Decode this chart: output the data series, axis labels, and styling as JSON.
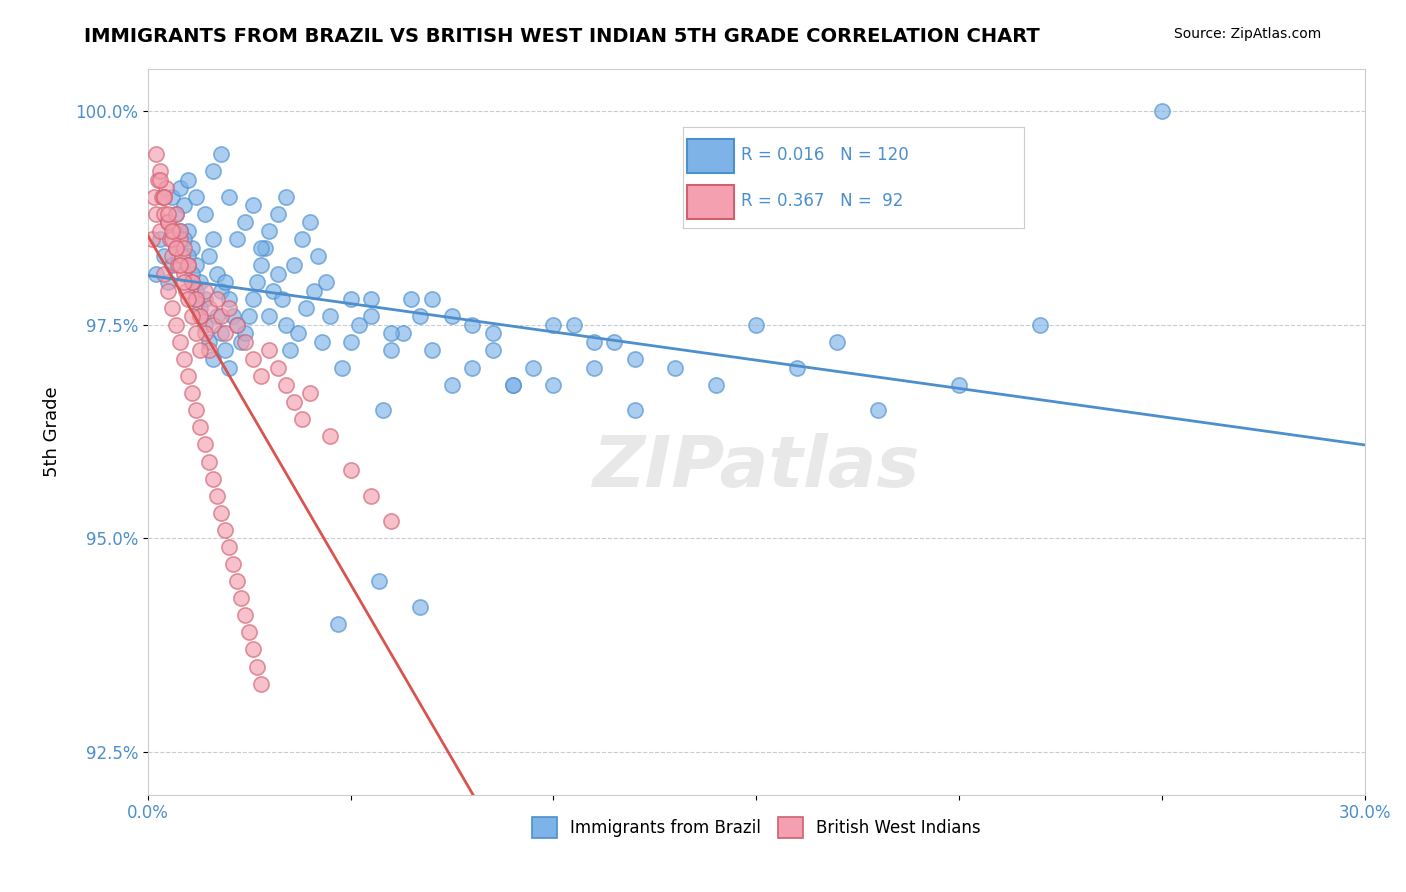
{
  "title": "IMMIGRANTS FROM BRAZIL VS BRITISH WEST INDIAN 5TH GRADE CORRELATION CHART",
  "source": "Source: ZipAtlas.com",
  "xlabel_blue": "Immigrants from Brazil",
  "xlabel_pink": "British West Indians",
  "ylabel": "5th Grade",
  "xlim": [
    0.0,
    30.0
  ],
  "ylim": [
    92.0,
    100.5
  ],
  "yticks": [
    92.5,
    95.0,
    97.5,
    100.0
  ],
  "xticks": [
    0.0,
    5.0,
    10.0,
    15.0,
    20.0,
    25.0,
    30.0
  ],
  "xtick_labels": [
    "0.0%",
    "",
    "",
    "",
    "",
    "",
    "30.0%"
  ],
  "ytick_labels": [
    "92.5%",
    "95.0%",
    "97.5%",
    "100.0%"
  ],
  "blue_color": "#7EB3E8",
  "pink_color": "#F4A0B0",
  "blue_line_color": "#4C8FCC",
  "pink_line_color": "#D9534F",
  "legend_R_blue": "0.016",
  "legend_N_blue": "120",
  "legend_R_pink": "0.367",
  "legend_N_pink": "92",
  "legend_text_color": "#4C8FCC",
  "watermark": "ZIPatlas",
  "background_color": "#FFFFFF",
  "grid_color": "#CCCCCC",
  "blue_scatter": {
    "x": [
      0.2,
      0.3,
      0.4,
      0.5,
      0.6,
      0.7,
      0.8,
      0.9,
      1.0,
      1.1,
      1.2,
      1.3,
      1.4,
      1.5,
      1.6,
      1.7,
      1.8,
      1.9,
      2.0,
      2.1,
      2.2,
      2.3,
      2.4,
      2.5,
      2.6,
      2.7,
      2.8,
      2.9,
      3.0,
      3.1,
      3.2,
      3.3,
      3.4,
      3.5,
      3.7,
      3.9,
      4.1,
      4.3,
      4.5,
      4.8,
      5.0,
      5.2,
      5.5,
      5.8,
      6.0,
      6.3,
      6.7,
      7.0,
      7.5,
      8.0,
      8.5,
      9.0,
      9.5,
      10.0,
      10.5,
      11.0,
      11.5,
      12.0,
      13.0,
      14.0,
      15.0,
      16.0,
      17.0,
      18.0,
      20.0,
      22.0,
      25.0,
      1.0,
      1.2,
      1.4,
      1.6,
      1.8,
      2.0,
      2.2,
      2.4,
      2.6,
      2.8,
      3.0,
      3.2,
      3.4,
      3.6,
      3.8,
      4.0,
      4.2,
      4.4,
      5.0,
      5.5,
      6.0,
      7.0,
      8.0,
      9.0,
      10.0,
      11.0,
      12.0,
      6.5,
      7.5,
      8.5,
      4.7,
      5.7,
      6.7,
      0.5,
      0.6,
      0.7,
      0.8,
      0.9,
      1.0,
      1.1,
      1.2,
      1.3,
      1.4,
      1.5,
      1.6,
      1.7,
      1.8,
      1.9,
      2.0
    ],
    "y": [
      98.1,
      98.5,
      98.3,
      98.7,
      99.0,
      98.8,
      99.1,
      98.9,
      98.6,
      98.4,
      98.2,
      98.0,
      97.8,
      98.3,
      98.5,
      98.1,
      97.9,
      98.0,
      97.8,
      97.6,
      97.5,
      97.3,
      97.4,
      97.6,
      97.8,
      98.0,
      98.2,
      98.4,
      97.6,
      97.9,
      98.1,
      97.8,
      97.5,
      97.2,
      97.4,
      97.7,
      97.9,
      97.3,
      97.6,
      97.0,
      97.3,
      97.5,
      97.8,
      96.5,
      97.2,
      97.4,
      97.6,
      97.8,
      96.8,
      97.5,
      97.2,
      96.8,
      97.0,
      96.8,
      97.5,
      97.0,
      97.3,
      96.5,
      97.0,
      96.8,
      97.5,
      97.0,
      97.3,
      96.5,
      96.8,
      97.5,
      100.0,
      99.2,
      99.0,
      98.8,
      99.3,
      99.5,
      99.0,
      98.5,
      98.7,
      98.9,
      98.4,
      98.6,
      98.8,
      99.0,
      98.2,
      98.5,
      98.7,
      98.3,
      98.0,
      97.8,
      97.6,
      97.4,
      97.2,
      97.0,
      96.8,
      97.5,
      97.3,
      97.1,
      97.8,
      97.6,
      97.4,
      94.0,
      94.5,
      94.2,
      98.0,
      98.2,
      98.4,
      98.6,
      98.5,
      98.3,
      98.1,
      97.9,
      97.7,
      97.5,
      97.3,
      97.1,
      97.6,
      97.4,
      97.2,
      97.0
    ]
  },
  "pink_scatter": {
    "x": [
      0.1,
      0.15,
      0.2,
      0.25,
      0.3,
      0.35,
      0.4,
      0.45,
      0.5,
      0.55,
      0.6,
      0.65,
      0.7,
      0.75,
      0.8,
      0.85,
      0.9,
      0.95,
      1.0,
      1.1,
      1.2,
      1.3,
      1.4,
      1.5,
      1.6,
      1.7,
      1.8,
      1.9,
      2.0,
      2.2,
      2.4,
      2.6,
      2.8,
      3.0,
      3.2,
      3.4,
      3.6,
      3.8,
      4.0,
      4.5,
      5.0,
      5.5,
      6.0,
      0.3,
      0.4,
      0.5,
      0.6,
      0.7,
      0.8,
      0.9,
      1.0,
      1.1,
      1.2,
      1.3,
      1.4,
      1.5,
      0.2,
      0.3,
      0.4,
      0.5,
      0.6,
      0.7,
      0.8,
      0.9,
      1.0,
      1.1,
      1.2,
      1.3,
      0.4,
      0.5,
      0.6,
      0.7,
      0.8,
      0.9,
      1.0,
      1.1,
      1.2,
      1.3,
      1.4,
      1.5,
      1.6,
      1.7,
      1.8,
      1.9,
      2.0,
      2.1,
      2.2,
      2.3,
      2.4,
      2.5,
      2.6,
      2.7,
      2.8
    ],
    "y": [
      98.5,
      99.0,
      98.8,
      99.2,
      98.6,
      99.0,
      98.8,
      99.1,
      98.7,
      98.5,
      98.3,
      98.6,
      98.4,
      98.2,
      98.5,
      98.3,
      98.1,
      97.9,
      98.2,
      98.0,
      97.8,
      97.6,
      97.9,
      97.7,
      97.5,
      97.8,
      97.6,
      97.4,
      97.7,
      97.5,
      97.3,
      97.1,
      96.9,
      97.2,
      97.0,
      96.8,
      96.6,
      96.4,
      96.7,
      96.2,
      95.8,
      95.5,
      95.2,
      99.3,
      99.0,
      98.7,
      98.5,
      98.8,
      98.6,
      98.4,
      98.2,
      98.0,
      97.8,
      97.6,
      97.4,
      97.2,
      99.5,
      99.2,
      99.0,
      98.8,
      98.6,
      98.4,
      98.2,
      98.0,
      97.8,
      97.6,
      97.4,
      97.2,
      98.1,
      97.9,
      97.7,
      97.5,
      97.3,
      97.1,
      96.9,
      96.7,
      96.5,
      96.3,
      96.1,
      95.9,
      95.7,
      95.5,
      95.3,
      95.1,
      94.9,
      94.7,
      94.5,
      94.3,
      94.1,
      93.9,
      93.7,
      93.5,
      93.3
    ]
  }
}
